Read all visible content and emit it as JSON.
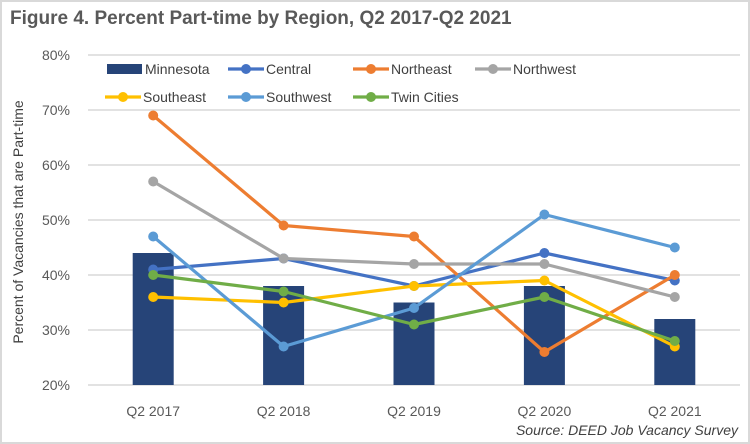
{
  "chart_data": {
    "type": "bar+line",
    "title": "Figure 4. Percent Part-time by Region, Q2 2017-Q2 2021",
    "source": "Source: DEED Job Vacancy Survey",
    "xlabel": "",
    "ylabel": "Percent of Vacancies that are Part-time",
    "categories": [
      "Q2 2017",
      "Q2 2018",
      "Q2 2019",
      "Q2 2020",
      "Q2 2021"
    ],
    "ylim": [
      20,
      80
    ],
    "yticks": [
      20,
      30,
      40,
      50,
      60,
      70,
      80
    ],
    "ytick_labels": [
      "20%",
      "30%",
      "40%",
      "50%",
      "60%",
      "70%",
      "80%"
    ],
    "grid": true,
    "legend_position": "top",
    "bar_series": {
      "name": "Minnesota",
      "color": "#264478",
      "values": [
        44,
        38,
        35,
        38,
        32
      ]
    },
    "series": [
      {
        "name": "Central",
        "color": "#4472c4",
        "values": [
          41,
          43,
          38,
          44,
          39
        ]
      },
      {
        "name": "Northeast",
        "color": "#ed7d31",
        "values": [
          69,
          49,
          47,
          26,
          40
        ]
      },
      {
        "name": "Northwest",
        "color": "#a5a5a5",
        "values": [
          57,
          43,
          42,
          42,
          36
        ]
      },
      {
        "name": "Southeast",
        "color": "#ffc000",
        "values": [
          36,
          35,
          38,
          39,
          27
        ]
      },
      {
        "name": "Southwest",
        "color": "#5b9bd5",
        "values": [
          47,
          27,
          34,
          51,
          45
        ]
      },
      {
        "name": "Twin Cities",
        "color": "#70ad47",
        "values": [
          40,
          37,
          31,
          36,
          28
        ]
      }
    ]
  }
}
